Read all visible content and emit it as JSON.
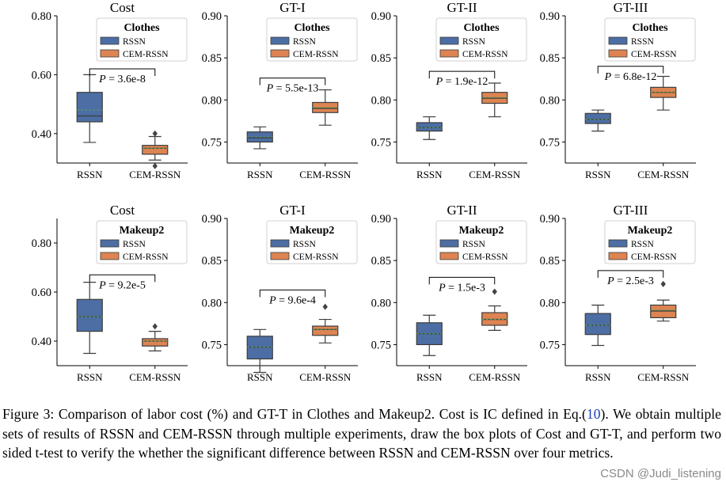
{
  "colors": {
    "rssn": "#4c6ea4",
    "cem": "#dd8452",
    "box_stroke": "#3c3c3c",
    "median": "#3c3c3c",
    "mean": "#5aa05a"
  },
  "chart_data": [
    {
      "type": "box",
      "row": 0,
      "col": 0,
      "title": "Cost",
      "legend_title": "Clothes",
      "ylim": [
        0.3,
        0.8
      ],
      "yticks": [
        0.4,
        0.6,
        0.8
      ],
      "ytick_labels": [
        "0.40",
        "0.60",
        "0.80"
      ],
      "categories": [
        "RSSN",
        "CEM-RSSN"
      ],
      "series": [
        {
          "name": "RSSN",
          "min": 0.37,
          "q1": 0.44,
          "median": 0.46,
          "mean": 0.48,
          "q3": 0.54,
          "max": 0.6,
          "outliers": []
        },
        {
          "name": "CEM-RSSN",
          "min": 0.31,
          "q1": 0.33,
          "median": 0.35,
          "mean": 0.35,
          "q3": 0.36,
          "max": 0.39,
          "outliers": [
            0.4,
            0.29
          ]
        }
      ],
      "p_label": "P",
      "p_value": "3.6e-8",
      "p_line_y": 0.62
    },
    {
      "type": "box",
      "row": 0,
      "col": 1,
      "title": "GT-I",
      "legend_title": "Clothes",
      "ylim": [
        0.725,
        0.9
      ],
      "yticks": [
        0.75,
        0.8,
        0.85,
        0.9
      ],
      "ytick_labels": [
        "0.75",
        "0.80",
        "0.85",
        "0.90"
      ],
      "categories": [
        "RSSN",
        "CEM-RSSN"
      ],
      "series": [
        {
          "name": "RSSN",
          "min": 0.742,
          "q1": 0.75,
          "median": 0.755,
          "mean": 0.756,
          "q3": 0.762,
          "max": 0.768,
          "outliers": []
        },
        {
          "name": "CEM-RSSN",
          "min": 0.77,
          "q1": 0.785,
          "median": 0.79,
          "mean": 0.791,
          "q3": 0.797,
          "max": 0.812,
          "outliers": []
        }
      ],
      "p_label": "P",
      "p_value": "5.5e-13",
      "p_line_y": 0.826
    },
    {
      "type": "box",
      "row": 0,
      "col": 2,
      "title": "GT-II",
      "legend_title": "Clothes",
      "ylim": [
        0.725,
        0.9
      ],
      "yticks": [
        0.75,
        0.8,
        0.85,
        0.9
      ],
      "ytick_labels": [
        "0.75",
        "0.80",
        "0.85",
        "0.90"
      ],
      "categories": [
        "RSSN",
        "CEM-RSSN"
      ],
      "series": [
        {
          "name": "RSSN",
          "min": 0.753,
          "q1": 0.763,
          "median": 0.767,
          "mean": 0.767,
          "q3": 0.773,
          "max": 0.78,
          "outliers": []
        },
        {
          "name": "CEM-RSSN",
          "min": 0.78,
          "q1": 0.796,
          "median": 0.802,
          "mean": 0.803,
          "q3": 0.809,
          "max": 0.82,
          "outliers": []
        }
      ],
      "p_label": "P",
      "p_value": "1.9e-12",
      "p_line_y": 0.834
    },
    {
      "type": "box",
      "row": 0,
      "col": 3,
      "title": "GT-III",
      "legend_title": "Clothes",
      "ylim": [
        0.725,
        0.9
      ],
      "yticks": [
        0.75,
        0.8,
        0.85,
        0.9
      ],
      "ytick_labels": [
        "0.75",
        "0.80",
        "0.85",
        "0.90"
      ],
      "categories": [
        "RSSN",
        "CEM-RSSN"
      ],
      "series": [
        {
          "name": "RSSN",
          "min": 0.763,
          "q1": 0.772,
          "median": 0.777,
          "mean": 0.777,
          "q3": 0.784,
          "max": 0.788,
          "outliers": []
        },
        {
          "name": "CEM-RSSN",
          "min": 0.788,
          "q1": 0.803,
          "median": 0.809,
          "mean": 0.809,
          "q3": 0.815,
          "max": 0.828,
          "outliers": []
        }
      ],
      "p_label": "P",
      "p_value": "6.8e-12",
      "p_line_y": 0.84
    },
    {
      "type": "box",
      "row": 1,
      "col": 0,
      "title": "Cost",
      "legend_title": "Makeup2",
      "ylim": [
        0.3,
        0.9
      ],
      "yticks": [
        0.4,
        0.6,
        0.8
      ],
      "ytick_labels": [
        "0.40",
        "0.60",
        "0.80"
      ],
      "categories": [
        "RSSN",
        "CEM-RSSN"
      ],
      "series": [
        {
          "name": "RSSN",
          "min": 0.35,
          "q1": 0.44,
          "median": 0.5,
          "mean": 0.5,
          "q3": 0.57,
          "max": 0.64,
          "outliers": []
        },
        {
          "name": "CEM-RSSN",
          "min": 0.36,
          "q1": 0.38,
          "median": 0.4,
          "mean": 0.4,
          "q3": 0.41,
          "max": 0.44,
          "outliers": [
            0.46
          ]
        }
      ],
      "p_label": "P",
      "p_value": "9.2e-5",
      "p_line_y": 0.67
    },
    {
      "type": "box",
      "row": 1,
      "col": 1,
      "title": "GT-I",
      "legend_title": "Makeup2",
      "ylim": [
        0.725,
        0.9
      ],
      "yticks": [
        0.75,
        0.8,
        0.85,
        0.9
      ],
      "ytick_labels": [
        "0.75",
        "0.80",
        "0.85",
        "0.90"
      ],
      "categories": [
        "RSSN",
        "CEM-RSSN"
      ],
      "series": [
        {
          "name": "RSSN",
          "min": 0.717,
          "q1": 0.733,
          "median": 0.747,
          "mean": 0.747,
          "q3": 0.76,
          "max": 0.768,
          "outliers": []
        },
        {
          "name": "CEM-RSSN",
          "min": 0.752,
          "q1": 0.761,
          "median": 0.768,
          "mean": 0.768,
          "q3": 0.772,
          "max": 0.78,
          "outliers": [
            0.795
          ]
        }
      ],
      "p_label": "P",
      "p_value": "9.6e-4",
      "p_line_y": 0.815
    },
    {
      "type": "box",
      "row": 1,
      "col": 2,
      "title": "GT-II",
      "legend_title": "Makeup2",
      "ylim": [
        0.725,
        0.9
      ],
      "yticks": [
        0.75,
        0.8,
        0.85,
        0.9
      ],
      "ytick_labels": [
        "0.75",
        "0.80",
        "0.85",
        "0.90"
      ],
      "categories": [
        "RSSN",
        "CEM-RSSN"
      ],
      "series": [
        {
          "name": "RSSN",
          "min": 0.737,
          "q1": 0.75,
          "median": 0.763,
          "mean": 0.763,
          "q3": 0.776,
          "max": 0.785,
          "outliers": []
        },
        {
          "name": "CEM-RSSN",
          "min": 0.767,
          "q1": 0.773,
          "median": 0.78,
          "mean": 0.78,
          "q3": 0.788,
          "max": 0.796,
          "outliers": [
            0.813
          ]
        }
      ],
      "p_label": "P",
      "p_value": "1.5e-3",
      "p_line_y": 0.83
    },
    {
      "type": "box",
      "row": 1,
      "col": 3,
      "title": "GT-III",
      "legend_title": "Makeup2",
      "ylim": [
        0.725,
        0.9
      ],
      "yticks": [
        0.75,
        0.8,
        0.85,
        0.9
      ],
      "ytick_labels": [
        "0.75",
        "0.80",
        "0.85",
        "0.90"
      ],
      "categories": [
        "RSSN",
        "CEM-RSSN"
      ],
      "series": [
        {
          "name": "RSSN",
          "min": 0.749,
          "q1": 0.762,
          "median": 0.773,
          "mean": 0.773,
          "q3": 0.787,
          "max": 0.797,
          "outliers": []
        },
        {
          "name": "CEM-RSSN",
          "min": 0.778,
          "q1": 0.782,
          "median": 0.79,
          "mean": 0.791,
          "q3": 0.797,
          "max": 0.803,
          "outliers": [
            0.822
          ]
        }
      ],
      "p_label": "P",
      "p_value": "2.5e-3",
      "p_line_y": 0.838
    }
  ],
  "caption": {
    "before_ref": "Figure 3: Comparison of labor cost (%) and GT-T in Clothes and Makeup2. Cost is IC defined in Eq.(",
    "ref": "10",
    "after_ref": "). We obtain multiple sets of results of RSSN and CEM-RSSN through multiple experiments, draw the box plots of Cost and GT-T, and perform two sided t-test to verify the whether the significant difference between RSSN and CEM-RSSN over four metrics."
  },
  "watermark": "CSDN @Judi_listening"
}
